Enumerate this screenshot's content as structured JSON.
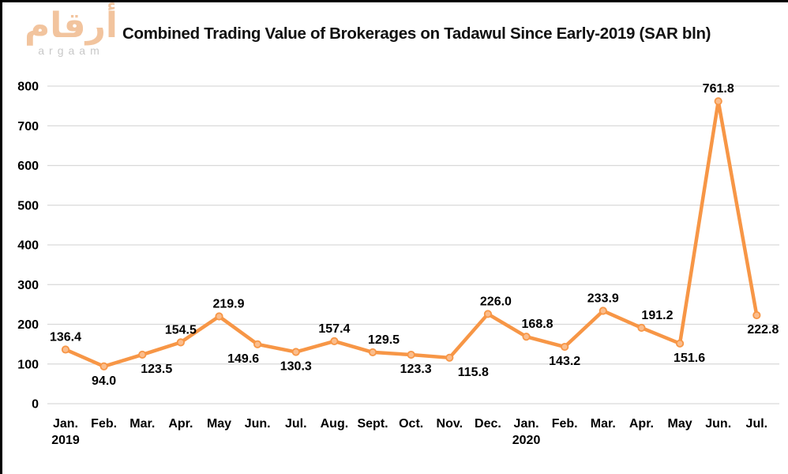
{
  "logo": {
    "arabic": "أرقام",
    "latin": "argaam"
  },
  "colors": {
    "line": "#f79646",
    "marker_fill": "#fbbd8c",
    "gridline": "#d9d9d9",
    "text": "#000000",
    "logo_peach": "#f2c49e",
    "logo_gray": "#c8c8c8"
  },
  "chart_data": {
    "type": "line",
    "title": "Combined Trading Value of Brokerages on Tadawul Since Early-2019 (SAR bln)",
    "categories": [
      "Jan.",
      "Feb.",
      "Mar.",
      "Apr.",
      "May",
      "Jun.",
      "Jul.",
      "Aug.",
      "Sept.",
      "Oct.",
      "Nov.",
      "Dec.",
      "Jan.",
      "Feb.",
      "Mar.",
      "Apr.",
      "May",
      "Jun.",
      "Jul."
    ],
    "category_years": {
      "0": "2019",
      "12": "2020"
    },
    "values": [
      136.4,
      94.0,
      123.5,
      154.5,
      219.9,
      149.6,
      130.3,
      157.4,
      129.5,
      123.3,
      115.8,
      226.0,
      168.8,
      143.2,
      233.9,
      191.2,
      151.6,
      761.8,
      222.8
    ],
    "label_pos": [
      "above",
      "below",
      "below",
      "above",
      "above",
      "below",
      "below",
      "above",
      "above",
      "below",
      "below",
      "above",
      "above",
      "below",
      "above",
      "above",
      "below",
      "above",
      "below"
    ],
    "label_dx": [
      0,
      0,
      18,
      0,
      12,
      -18,
      0,
      0,
      14,
      6,
      30,
      10,
      14,
      0,
      0,
      20,
      12,
      0,
      8
    ],
    "xlabel": "",
    "ylabel": "",
    "ylim": [
      0,
      800
    ],
    "ytick_step": 100,
    "grid": true,
    "legend": false
  }
}
